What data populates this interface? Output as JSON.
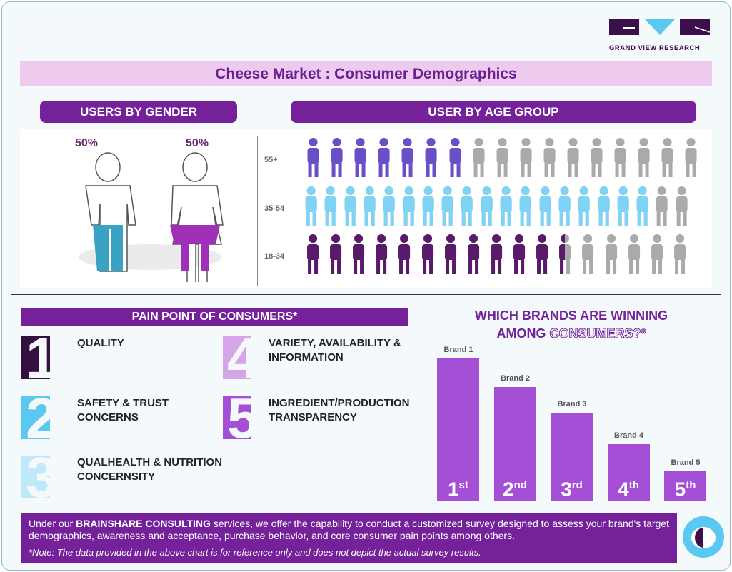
{
  "logo": {
    "text": "GRAND VIEW RESEARCH",
    "colors": [
      "#3a0f4a",
      "#5bc8f2"
    ]
  },
  "title": "Cheese Market : Consumer Demographics",
  "gender": {
    "heading": "USERS BY GENDER",
    "male": {
      "pct": "50%",
      "color": "#3aa3c4"
    },
    "female": {
      "pct": "50%",
      "color": "#a030b8"
    }
  },
  "age": {
    "heading": "USER BY AGE GROUP",
    "rows": [
      {
        "label": "55+",
        "icons": 16.5,
        "filled": 7,
        "color": "#6a4fc8",
        "icon": "elderly-person-icon"
      },
      {
        "label": "35-54",
        "icons": 20,
        "filled": 18,
        "color": "#7fd3f5",
        "icon": "couple-icon"
      },
      {
        "label": "18-34",
        "icons": 17,
        "filled": 11.5,
        "color": "#5a1a6a",
        "icon": "walking-person-icon"
      }
    ]
  },
  "pain": {
    "heading": "PAIN POINT OF CONSUMERS*",
    "items": [
      {
        "num": "1",
        "text": "QUALITY",
        "color": "#33103f"
      },
      {
        "num": "2",
        "text": "SAFETY & TRUST\nCONCERNS",
        "color": "#5bc8f2"
      },
      {
        "num": "3",
        "text": "QUALHEALTH & NUTRITION\nCONCERNSITY",
        "color": "#bfe8f8"
      },
      {
        "num": "4",
        "text": "VARIETY, AVAILABILITY &\nINFORMATION",
        "color": "#d4a6e8"
      },
      {
        "num": "5",
        "text": "INGREDIENT/PRODUCTION\nTRANSPARENCY",
        "color": "#a54fd6"
      }
    ]
  },
  "chart_data": {
    "type": "bar",
    "title_line1": "WHICH BRANDS ARE WINNING",
    "title_line2a": "AMONG ",
    "title_line2b": "CONSUMERS?*",
    "categories": [
      "Brand 1",
      "Brand 2",
      "Brand 3",
      "Brand 4",
      "Brand 5"
    ],
    "values": [
      100,
      80,
      62,
      40,
      21
    ],
    "rank_labels": [
      [
        "1",
        "st"
      ],
      [
        "2",
        "nd"
      ],
      [
        "3",
        "rd"
      ],
      [
        "4",
        "th"
      ],
      [
        "5",
        "th"
      ]
    ],
    "color": "#a54fd6"
  },
  "note": {
    "pre": "Under our ",
    "bold": "BRAINSHARE CONSULTING",
    "post": " services, we offer the capability to conduct a customized survey designed to assess your brand's target demographics, awareness and acceptance, purchase behavior, and core consumer pain points among others.",
    "disclaimer": "*Note: The data provided in the above chart is for reference only and does not depict the actual survey results."
  }
}
